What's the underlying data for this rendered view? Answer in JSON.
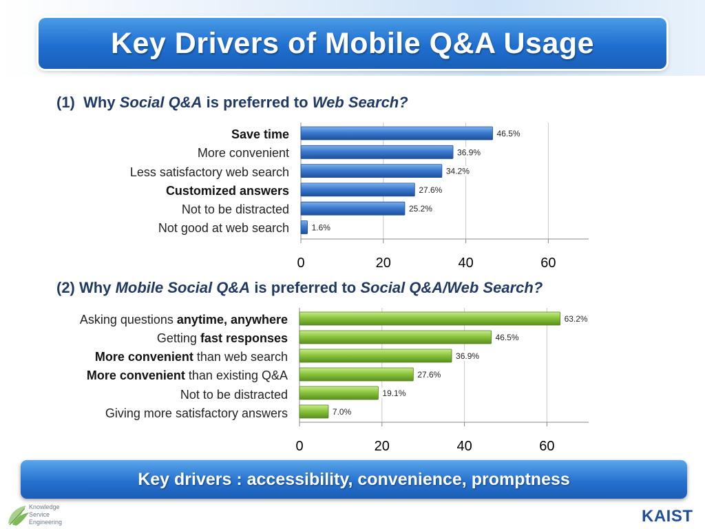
{
  "title": "Key Drivers of Mobile Q&A Usage",
  "q1": {
    "num": "(1)",
    "pre": "Why",
    "em1": "Social Q&A",
    "mid": "is preferred to",
    "em2": "Web Search?"
  },
  "q2": {
    "num": "(2)",
    "pre": "Why",
    "em1": "Mobile Social Q&A",
    "mid": "is preferred to",
    "em2": "Social Q&A/Web Search?"
  },
  "labels1": [
    {
      "bold": "Save time",
      "rest": ""
    },
    {
      "bold": "",
      "rest": "More convenient"
    },
    {
      "bold": "",
      "rest": "Less satisfactory web search"
    },
    {
      "bold": "Customized answers",
      "rest": ""
    },
    {
      "bold": "",
      "rest": "Not to be distracted "
    },
    {
      "bold": "",
      "rest": "Not good at web search"
    }
  ],
  "labels2": [
    {
      "pre": "Asking questions ",
      "bold": "anytime, anywhere",
      "post": ""
    },
    {
      "pre": "Getting ",
      "bold": "fast responses",
      "post": ""
    },
    {
      "pre": "",
      "bold": "More convenient",
      "post": " than web search"
    },
    {
      "pre": "",
      "bold": "More convenient",
      "post": " than existing Q&A "
    },
    {
      "pre": "Not to be distracted ",
      "bold": "",
      "post": ""
    },
    {
      "pre": "Giving more satisfactory answers",
      "bold": "",
      "post": ""
    }
  ],
  "chart_data": [
    {
      "type": "bar",
      "orientation": "horizontal",
      "categories": [
        "Save time",
        "More convenient",
        "Less satisfactory web search",
        "Customized answers",
        "Not to be distracted",
        "Not good at web search"
      ],
      "values": [
        46.5,
        36.9,
        34.2,
        27.6,
        25.2,
        1.6
      ],
      "value_labels": [
        "46.5%",
        "36.9%",
        "34.2%",
        "27.6%",
        "25.2%",
        "1.6%"
      ],
      "xticks": [
        "0",
        "20",
        "40",
        "60"
      ],
      "xlim": [
        0,
        70
      ],
      "grid": true,
      "color": "#3a74c4"
    },
    {
      "type": "bar",
      "orientation": "horizontal",
      "categories": [
        "Asking questions anytime, anywhere",
        "Getting fast responses",
        "More convenient than web search",
        "More convenient than existing Q&A",
        "Not to be distracted",
        "Giving more satisfactory answers"
      ],
      "values": [
        63.2,
        46.5,
        36.9,
        27.6,
        19.1,
        7.0
      ],
      "value_labels": [
        "63.2%",
        "46.5%",
        "36.9%",
        "27.6%",
        "19.1%",
        "7.0%"
      ],
      "xticks": [
        "0",
        "20",
        "40",
        "60"
      ],
      "xlim": [
        0,
        70
      ],
      "grid": true,
      "color": "#8cc63f"
    }
  ],
  "footer": "Key drivers : accessibility, convenience, promptness",
  "logo_left": {
    "line1": "Knowledge",
    "line2": "Service",
    "line3": "Engineering"
  },
  "logo_right": "KAIST"
}
